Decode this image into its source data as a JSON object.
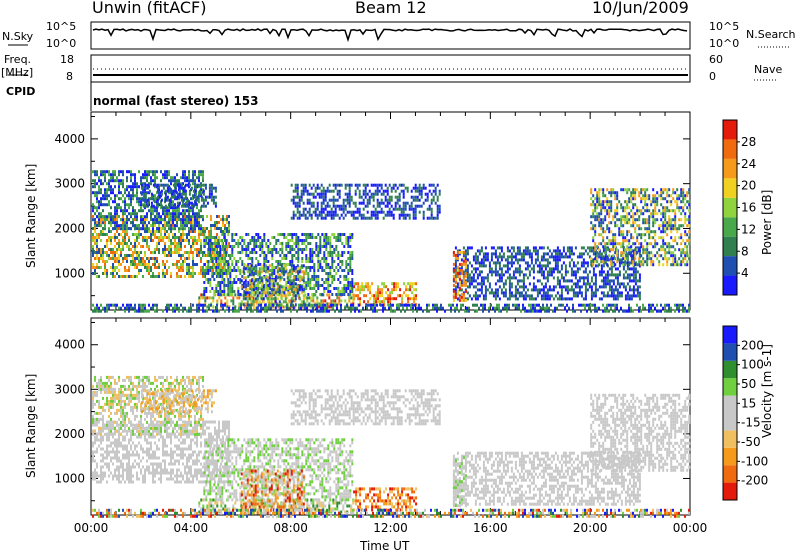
{
  "header": {
    "station": "Unwin (fitACF)",
    "beam": "Beam 12",
    "date": "10/Jun/2009"
  },
  "top_panels": {
    "nsky_label": "N.Sky",
    "nsky_ticks": [
      "10^5",
      "10^0"
    ],
    "nsearch_label": "N.Search",
    "nsearch_ticks": [
      "10^5",
      "10^0"
    ],
    "freq_label": "Freq.",
    "freq_unit": "[MHz]",
    "freq_ticks": [
      "18",
      "8"
    ],
    "nave_label": "Nave",
    "nave_ticks": [
      "60",
      "0"
    ],
    "cpid_label": "CPID",
    "cpid_value": "normal (fast stereo) 153"
  },
  "colors": {
    "power": [
      "#1a1aff",
      "#1f4fb0",
      "#2f7f4f",
      "#49a84a",
      "#8fd43f",
      "#f0d020",
      "#f59a1a",
      "#f06a10",
      "#e41a0a"
    ],
    "velocity": [
      "#e41a0a",
      "#f06a10",
      "#f59a1a",
      "#f0c060",
      "#c8c8c8",
      "#c8c8c8",
      "#6fcf3f",
      "#2f8f2f",
      "#1f4fb0",
      "#1a1aff"
    ]
  },
  "chart_data": [
    {
      "type": "heatmap",
      "name": "power",
      "ylabel": "Slant Range [km]",
      "ylim": [
        180,
        4600
      ],
      "yticks": [
        "4000",
        "3000",
        "2000",
        "1000"
      ],
      "colorbar_label": "Power [dB]",
      "colorbar_ticks": [
        "28",
        "24",
        "20",
        "16",
        "12",
        "8",
        "4"
      ],
      "crange": [
        0,
        32
      ]
    },
    {
      "type": "heatmap",
      "name": "velocity",
      "ylabel": "Slant Range [km]",
      "ylim": [
        180,
        4600
      ],
      "yticks": [
        "4000",
        "3000",
        "2000",
        "1000"
      ],
      "colorbar_label": "Velocity [m s-1]",
      "colorbar_ticks": [
        "200",
        "100",
        "50",
        "15",
        "-15",
        "-50",
        "-100",
        "-200"
      ]
    }
  ],
  "x_axis": {
    "label": "Time UT",
    "ticks": [
      "00:00",
      "04:00",
      "08:00",
      "12:00",
      "16:00",
      "20:00",
      "00:00"
    ],
    "xlim_hours": [
      0,
      24
    ]
  }
}
